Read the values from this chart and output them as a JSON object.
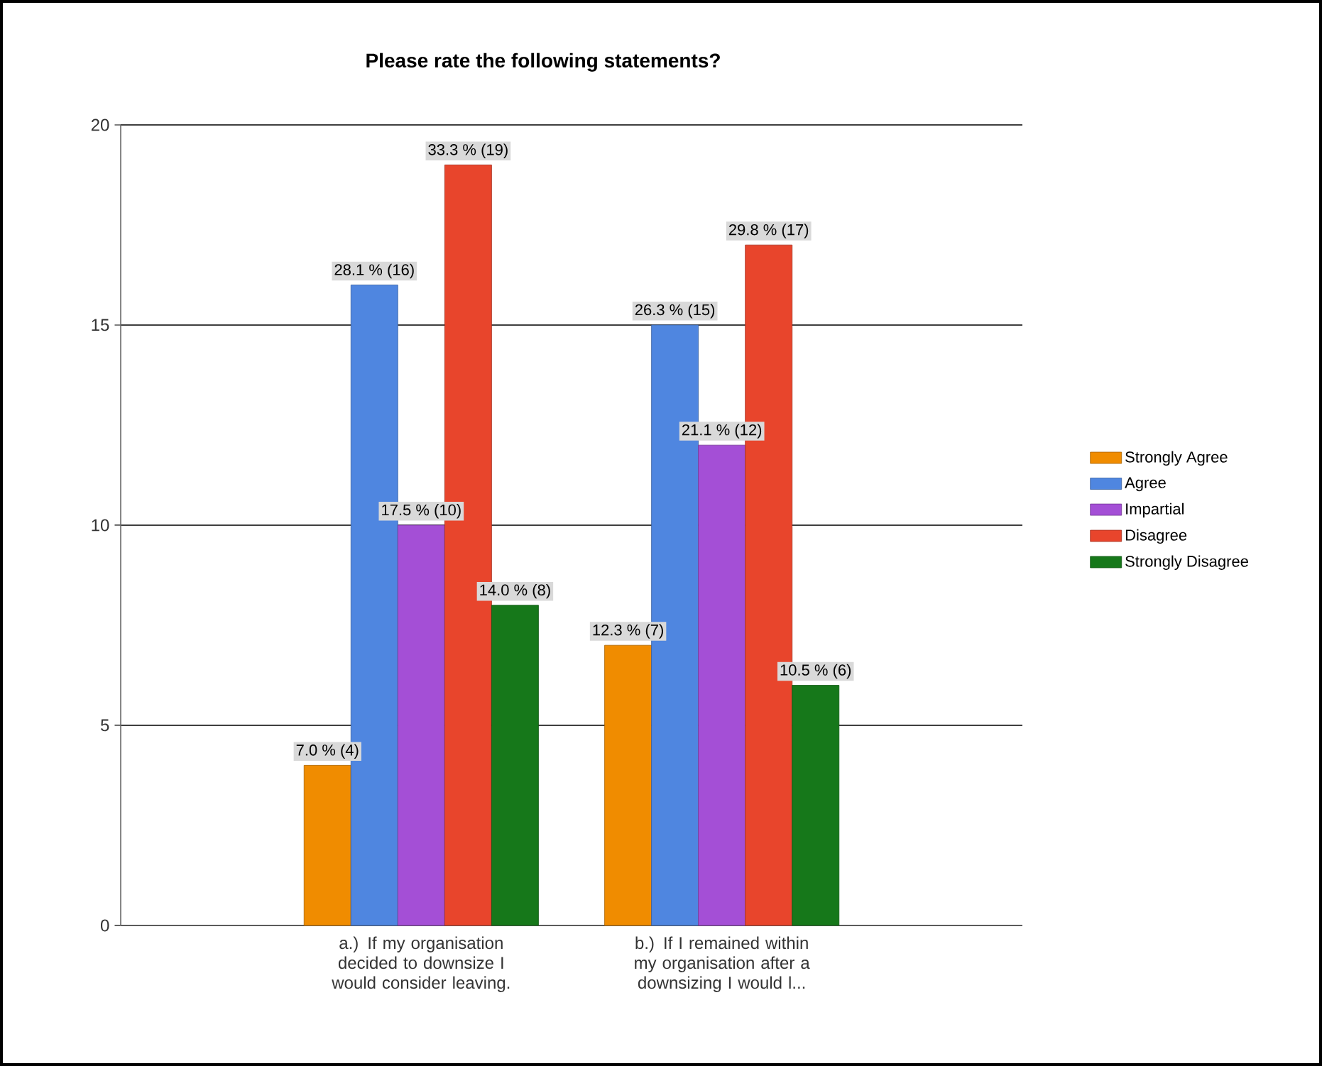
{
  "chart_data": {
    "type": "bar",
    "title": "Please rate the following statements?",
    "categories": [
      "a.) If my organisation decided to downsize I would consider leaving.",
      "b.) If I remained within my organisation after a downsizing I would l..."
    ],
    "series": [
      {
        "name": "Strongly Agree",
        "color": "#f08c00",
        "values": [
          4,
          7
        ],
        "value_labels": [
          "7.0 % (4)",
          "12.3 % (7)"
        ]
      },
      {
        "name": "Agree",
        "color": "#4f86e0",
        "values": [
          16,
          15
        ],
        "value_labels": [
          "28.1 % (16)",
          "26.3 % (15)"
        ]
      },
      {
        "name": "Impartial",
        "color": "#a44fd6",
        "values": [
          10,
          12
        ],
        "value_labels": [
          "17.5 % (10)",
          "21.1 % (12)"
        ]
      },
      {
        "name": "Disagree",
        "color": "#e8452c",
        "values": [
          19,
          17
        ],
        "value_labels": [
          "33.3 % (19)",
          "29.8 % (17)"
        ]
      },
      {
        "name": "Strongly Disagree",
        "color": "#16781a",
        "values": [
          8,
          6
        ],
        "value_labels": [
          "14.0 % (8)",
          "10.5 % (6)"
        ]
      }
    ],
    "ylim": [
      0,
      20
    ],
    "yticks": [
      0,
      5,
      10,
      15,
      20
    ],
    "grid": "y",
    "legend": "right"
  }
}
